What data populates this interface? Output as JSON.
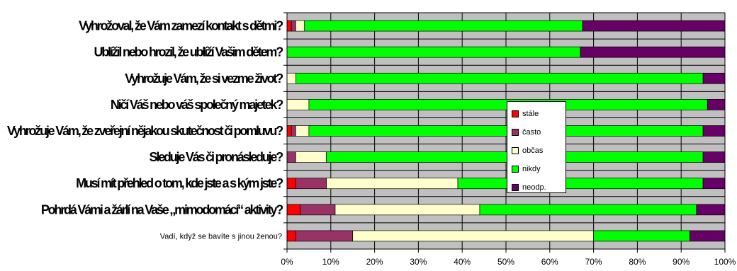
{
  "chart_data": {
    "type": "bar",
    "orientation": "horizontal",
    "stacked": "percent",
    "categories": [
      "Vyhrožoval, že Vám zamezí kontakt s dětmi?",
      "Ublížil nebo hrozil, že ublíží Vašim dětem?",
      "Vyhrožuje Vám, že si vezme život?",
      "Ničí Váš nebo váš společný majetek?",
      "Vyhrožuje Vám, že zveřejní nějakou skutečnost či pomluvu?",
      "Sleduje Vás či pronásleduje?",
      "Musí mít přehled o tom, kde jste a s kým jste?",
      "Pohrdá Vámi a žárlí na Vaše „mimodomácí“ aktivity?",
      "Vadí, když se bavíte s jinou ženou?"
    ],
    "series": [
      {
        "name": "stále",
        "color": "#ff0000",
        "values": [
          1,
          0,
          0,
          0,
          1,
          0,
          2,
          3,
          2
        ]
      },
      {
        "name": "často",
        "color": "#993366",
        "values": [
          1,
          0,
          0,
          0,
          1,
          2,
          7,
          8,
          13
        ]
      },
      {
        "name": "občas",
        "color": "#ffffcc",
        "values": [
          2,
          0,
          2,
          5,
          3,
          7,
          30,
          33,
          55
        ]
      },
      {
        "name": "nikdy",
        "color": "#00ff00",
        "values": [
          63.5,
          67,
          93,
          91,
          90,
          86,
          56,
          49.5,
          22
        ]
      },
      {
        "name": "neodp.",
        "color": "#660066",
        "values": [
          32.5,
          33,
          5,
          4,
          5,
          5,
          5,
          6.5,
          8
        ]
      }
    ],
    "x_ticks": [
      "0%",
      "10%",
      "20%",
      "30%",
      "40%",
      "50%",
      "60%",
      "70%",
      "80%",
      "90%",
      "100%"
    ],
    "xlim": [
      0,
      100
    ],
    "grid": true,
    "legend_position": "right-middle",
    "plot_background": "#c0c0c0"
  },
  "legend": {
    "items": [
      "stále",
      "často",
      "občas",
      "nikdy",
      "neodp."
    ]
  }
}
